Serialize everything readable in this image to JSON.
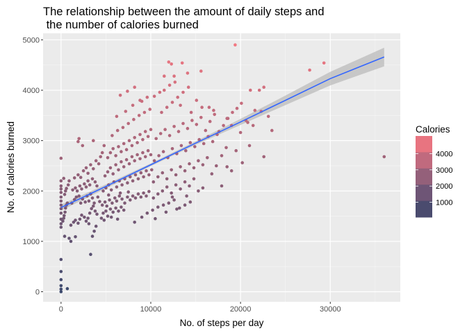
{
  "chart_data": {
    "type": "scatter",
    "title_lines": [
      "The relationship between the amount of daily steps and",
      " the number of calories burned"
    ],
    "xlabel": "No. of steps per day",
    "ylabel": "No. of calories burned",
    "xlim": [
      -2000,
      37800
    ],
    "ylim": [
      -200,
      5130
    ],
    "x_ticks": [
      0,
      10000,
      20000,
      30000
    ],
    "x_tick_labels": [
      "0",
      "10000",
      "20000",
      "30000"
    ],
    "y_ticks": [
      0,
      1000,
      2000,
      3000,
      4000,
      5000
    ],
    "y_tick_labels": [
      "0",
      "1000",
      "2000",
      "3000",
      "4000",
      "5000"
    ],
    "grid": true,
    "legend": {
      "title": "Calories",
      "placement": "right",
      "labels": [
        "4000",
        "3000",
        "2000",
        "1000"
      ],
      "values": [
        4000,
        3000,
        2000,
        1000
      ],
      "colors": [
        "#e87480",
        "#c06a7e",
        "#94607a",
        "#6e5576",
        "#4a4b6e"
      ]
    },
    "color_scale": {
      "low": "#3d4a6e",
      "high": "#f27882",
      "domain": [
        0,
        4900
      ]
    },
    "trend": {
      "type": "linear",
      "color": "#3366ff",
      "ci_color": "#bbbbbb",
      "x": [
        0,
        5000,
        10000,
        15000,
        20000,
        25000,
        30000,
        36000
      ],
      "y": [
        1670,
        2090,
        2520,
        2950,
        3370,
        3800,
        4230,
        4660
      ],
      "ci_half_width": [
        60,
        40,
        28,
        35,
        60,
        95,
        135,
        185
      ]
    },
    "points": [
      [
        0,
        0
      ],
      [
        0,
        50
      ],
      [
        0,
        120
      ],
      [
        0,
        240
      ],
      [
        0,
        400
      ],
      [
        0,
        640
      ],
      [
        700,
        60
      ],
      [
        0,
        1280
      ],
      [
        0,
        1350
      ],
      [
        0,
        1440
      ],
      [
        0,
        1560
      ],
      [
        0,
        1650
      ],
      [
        0,
        1720
      ],
      [
        0,
        1800
      ],
      [
        0,
        1880
      ],
      [
        0,
        1970
      ],
      [
        0,
        2040
      ],
      [
        0,
        2100
      ],
      [
        0,
        2200
      ],
      [
        0,
        2650
      ],
      [
        200,
        1400
      ],
      [
        300,
        1460
      ],
      [
        350,
        1510
      ],
      [
        450,
        1580
      ],
      [
        500,
        1660
      ],
      [
        600,
        1720
      ],
      [
        700,
        1760
      ],
      [
        400,
        1930
      ],
      [
        500,
        2000
      ],
      [
        600,
        2050
      ],
      [
        800,
        2120
      ],
      [
        900,
        2200
      ],
      [
        300,
        2250
      ],
      [
        900,
        1060
      ],
      [
        1100,
        1000
      ],
      [
        400,
        1100
      ],
      [
        1600,
        1090
      ],
      [
        1100,
        1320
      ],
      [
        1400,
        1380
      ],
      [
        1600,
        1420
      ],
      [
        1900,
        1360
      ],
      [
        2100,
        1440
      ],
      [
        2300,
        1520
      ],
      [
        2600,
        1480
      ],
      [
        2800,
        1400
      ],
      [
        3000,
        1460
      ],
      [
        3100,
        1350
      ],
      [
        3300,
        740
      ],
      [
        3500,
        1100
      ],
      [
        3700,
        1200
      ],
      [
        3900,
        1300
      ],
      [
        3200,
        1560
      ],
      [
        3400,
        1650
      ],
      [
        3600,
        1700
      ],
      [
        3800,
        1600
      ],
      [
        4000,
        1540
      ],
      [
        1200,
        1760
      ],
      [
        1500,
        1830
      ],
      [
        1700,
        1880
      ],
      [
        2000,
        1900
      ],
      [
        2200,
        1760
      ],
      [
        2400,
        1840
      ],
      [
        2700,
        1780
      ],
      [
        2900,
        1900
      ],
      [
        3100,
        1800
      ],
      [
        3300,
        1940
      ],
      [
        3500,
        1860
      ],
      [
        3700,
        1760
      ],
      [
        4100,
        1880
      ],
      [
        4300,
        1790
      ],
      [
        1300,
        2020
      ],
      [
        1600,
        2060
      ],
      [
        1800,
        2000
      ],
      [
        2100,
        2100
      ],
      [
        2300,
        2040
      ],
      [
        2600,
        2140
      ],
      [
        2800,
        2080
      ],
      [
        3000,
        2200
      ],
      [
        3200,
        2120
      ],
      [
        3500,
        2240
      ],
      [
        3800,
        2180
      ],
      [
        4000,
        2100
      ],
      [
        1500,
        2260
      ],
      [
        1900,
        2320
      ],
      [
        2200,
        2270
      ],
      [
        2500,
        2400
      ],
      [
        2800,
        2460
      ],
      [
        3000,
        2350
      ],
      [
        3300,
        2520
      ],
      [
        3600,
        2440
      ],
      [
        3900,
        2600
      ],
      [
        4200,
        2540
      ],
      [
        4400,
        2680
      ],
      [
        4600,
        2760
      ],
      [
        2400,
        2900
      ],
      [
        2000,
        3040
      ],
      [
        1900,
        2980
      ],
      [
        3600,
        3000
      ],
      [
        4800,
        2900
      ],
      [
        4500,
        1460
      ],
      [
        4700,
        1560
      ],
      [
        5000,
        1600
      ],
      [
        5200,
        1500
      ],
      [
        5500,
        1640
      ],
      [
        5800,
        1580
      ],
      [
        6100,
        1660
      ],
      [
        6400,
        1600
      ],
      [
        6700,
        1680
      ],
      [
        7000,
        1620
      ],
      [
        4800,
        1420
      ],
      [
        5600,
        1480
      ],
      [
        6300,
        1440
      ],
      [
        4600,
        1720
      ],
      [
        4900,
        1780
      ],
      [
        5100,
        1700
      ],
      [
        5400,
        1820
      ],
      [
        5700,
        1760
      ],
      [
        6000,
        1860
      ],
      [
        6200,
        1800
      ],
      [
        6500,
        1900
      ],
      [
        6800,
        1840
      ],
      [
        7100,
        1760
      ],
      [
        7400,
        1880
      ],
      [
        7700,
        1820
      ],
      [
        8000,
        1900
      ],
      [
        8300,
        1860
      ],
      [
        8600,
        1940
      ],
      [
        8900,
        1880
      ],
      [
        9200,
        1960
      ],
      [
        9500,
        1900
      ],
      [
        9800,
        1990
      ],
      [
        5300,
        1920
      ],
      [
        6600,
        1960
      ],
      [
        7500,
        1980
      ],
      [
        4700,
        2000
      ],
      [
        5000,
        2060
      ],
      [
        5300,
        2120
      ],
      [
        5600,
        2020
      ],
      [
        5900,
        2180
      ],
      [
        6200,
        2080
      ],
      [
        6500,
        2200
      ],
      [
        6800,
        2120
      ],
      [
        7100,
        2240
      ],
      [
        7400,
        2160
      ],
      [
        7700,
        2280
      ],
      [
        8000,
        2200
      ],
      [
        8300,
        2320
      ],
      [
        8600,
        2240
      ],
      [
        8900,
        2360
      ],
      [
        9200,
        2280
      ],
      [
        9500,
        2400
      ],
      [
        9800,
        2320
      ],
      [
        10100,
        2420
      ],
      [
        4900,
        2300
      ],
      [
        5200,
        2380
      ],
      [
        5500,
        2460
      ],
      [
        5800,
        2340
      ],
      [
        6100,
        2520
      ],
      [
        6400,
        2420
      ],
      [
        6700,
        2580
      ],
      [
        7000,
        2480
      ],
      [
        7300,
        2620
      ],
      [
        7600,
        2540
      ],
      [
        7900,
        2680
      ],
      [
        8200,
        2600
      ],
      [
        8500,
        2720
      ],
      [
        8800,
        2640
      ],
      [
        9100,
        2760
      ],
      [
        9400,
        2680
      ],
      [
        9700,
        2800
      ],
      [
        10000,
        2720
      ],
      [
        5200,
        2660
      ],
      [
        5500,
        2760
      ],
      [
        5800,
        2840
      ],
      [
        6100,
        2700
      ],
      [
        6400,
        2880
      ],
      [
        6700,
        2780
      ],
      [
        7000,
        2940
      ],
      [
        7300,
        2820
      ],
      [
        7600,
        3000
      ],
      [
        7900,
        2900
      ],
      [
        8200,
        3060
      ],
      [
        8500,
        2960
      ],
      [
        8800,
        3120
      ],
      [
        9100,
        3020
      ],
      [
        9400,
        3180
      ],
      [
        9700,
        3080
      ],
      [
        10000,
        3220
      ],
      [
        5700,
        3100
      ],
      [
        6300,
        3200
      ],
      [
        6900,
        3260
      ],
      [
        7500,
        3340
      ],
      [
        8100,
        3420
      ],
      [
        8700,
        3500
      ],
      [
        9300,
        3560
      ],
      [
        9900,
        3620
      ],
      [
        6200,
        3480
      ],
      [
        7200,
        3580
      ],
      [
        8000,
        3700
      ],
      [
        8800,
        3800
      ],
      [
        9600,
        3860
      ],
      [
        6600,
        3900
      ],
      [
        7400,
        3980
      ],
      [
        8200,
        4060
      ],
      [
        9000,
        3780
      ],
      [
        10400,
        3880
      ],
      [
        11000,
        3960
      ],
      [
        8200,
        1380
      ],
      [
        9000,
        1480
      ],
      [
        9600,
        1560
      ],
      [
        10200,
        1620
      ],
      [
        10800,
        1680
      ],
      [
        11400,
        1720
      ],
      [
        12000,
        1760
      ],
      [
        12600,
        1820
      ],
      [
        13200,
        1660
      ],
      [
        13800,
        1720
      ],
      [
        14400,
        1780
      ],
      [
        10500,
        1450
      ],
      [
        11700,
        1580
      ],
      [
        12900,
        1640
      ],
      [
        10300,
        1860
      ],
      [
        10800,
        1940
      ],
      [
        11300,
        2000
      ],
      [
        11800,
        2080
      ],
      [
        12300,
        1960
      ],
      [
        12800,
        2120
      ],
      [
        13300,
        2040
      ],
      [
        13800,
        2180
      ],
      [
        14300,
        2100
      ],
      [
        14800,
        2240
      ],
      [
        15300,
        2000
      ],
      [
        15800,
        2060
      ],
      [
        14000,
        1900
      ],
      [
        12400,
        1880
      ],
      [
        10300,
        2180
      ],
      [
        10800,
        2280
      ],
      [
        11300,
        2360
      ],
      [
        11800,
        2240
      ],
      [
        12300,
        2420
      ],
      [
        12800,
        2320
      ],
      [
        13300,
        2480
      ],
      [
        13800,
        2400
      ],
      [
        14300,
        2540
      ],
      [
        14800,
        2460
      ],
      [
        15300,
        2600
      ],
      [
        15800,
        2520
      ],
      [
        16300,
        2660
      ],
      [
        16800,
        2340
      ],
      [
        17300,
        2500
      ],
      [
        17900,
        2100
      ],
      [
        18500,
        2480
      ],
      [
        19000,
        2400
      ],
      [
        10400,
        2600
      ],
      [
        10900,
        2700
      ],
      [
        11400,
        2780
      ],
      [
        11900,
        2660
      ],
      [
        12400,
        2840
      ],
      [
        12900,
        2740
      ],
      [
        13400,
        2900
      ],
      [
        13900,
        2800
      ],
      [
        14400,
        2960
      ],
      [
        14900,
        2880
      ],
      [
        15400,
        3020
      ],
      [
        15900,
        2940
      ],
      [
        16400,
        3080
      ],
      [
        16900,
        2980
      ],
      [
        17400,
        3120
      ],
      [
        17900,
        2700
      ],
      [
        18400,
        2860
      ],
      [
        10600,
        3040
      ],
      [
        11100,
        3140
      ],
      [
        11600,
        3220
      ],
      [
        12100,
        3100
      ],
      [
        12600,
        3280
      ],
      [
        13100,
        3180
      ],
      [
        13600,
        3340
      ],
      [
        14100,
        3240
      ],
      [
        14600,
        3400
      ],
      [
        15100,
        3320
      ],
      [
        15600,
        3460
      ],
      [
        16100,
        3200
      ],
      [
        16600,
        3380
      ],
      [
        17100,
        3520
      ],
      [
        17600,
        3180
      ],
      [
        18100,
        3300
      ],
      [
        18600,
        3440
      ],
      [
        19100,
        3560
      ],
      [
        19600,
        3640
      ],
      [
        20100,
        3740
      ],
      [
        11200,
        3560
      ],
      [
        11800,
        3660
      ],
      [
        12400,
        3760
      ],
      [
        13000,
        3860
      ],
      [
        13600,
        3960
      ],
      [
        14200,
        4060
      ],
      [
        11500,
        4000
      ],
      [
        12100,
        4100
      ],
      [
        12700,
        4160
      ],
      [
        13300,
        3700
      ],
      [
        14500,
        3560
      ],
      [
        15100,
        3800
      ],
      [
        15700,
        3660
      ],
      [
        12000,
        4560
      ],
      [
        12300,
        4520
      ],
      [
        13500,
        4540
      ],
      [
        14100,
        4340
      ],
      [
        15600,
        4380
      ],
      [
        12600,
        4280
      ],
      [
        11500,
        4280
      ],
      [
        19400,
        4900
      ],
      [
        27700,
        4400
      ],
      [
        29300,
        4540
      ],
      [
        36000,
        2680
      ],
      [
        19500,
        2800
      ],
      [
        20200,
        2560
      ],
      [
        21000,
        2900
      ],
      [
        21600,
        3600
      ],
      [
        22300,
        3580
      ],
      [
        22600,
        2680
      ],
      [
        23100,
        3480
      ],
      [
        23500,
        3200
      ],
      [
        21100,
        4000
      ],
      [
        22100,
        4000
      ],
      [
        22600,
        4060
      ],
      [
        20800,
        3360
      ],
      [
        20000,
        3160
      ],
      [
        19000,
        3300
      ],
      [
        18500,
        3440
      ],
      [
        17000,
        3600
      ],
      [
        16500,
        3660
      ],
      [
        20600,
        3400
      ],
      [
        21400,
        3300
      ]
    ]
  }
}
